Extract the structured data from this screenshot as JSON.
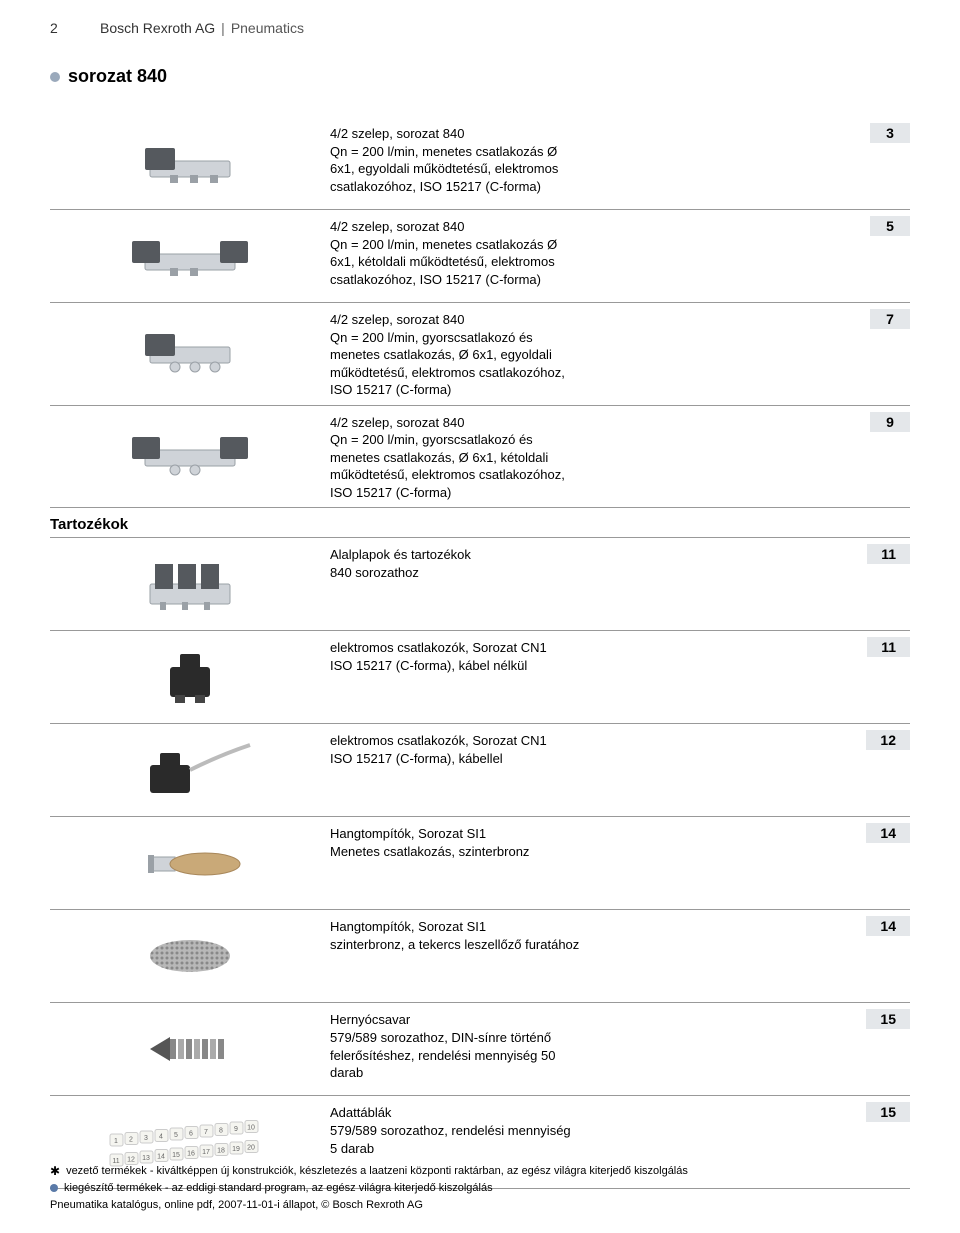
{
  "header": {
    "page_number": "2",
    "company": "Bosch Rexroth AG",
    "category": "Pneumatics"
  },
  "title": "sorozat 840",
  "section_header": "Tartozékok",
  "items": [
    {
      "desc": "4/2 szelep, sorozat 840\nQn = 200 l/min, menetes csatlakozás Ø\n6x1, egyoldali működtetésű, elektromos\ncsatlakozóhoz, ISO 15217 (C-forma)",
      "page": "3",
      "icon": "valve-single"
    },
    {
      "desc": "4/2 szelep, sorozat 840\nQn = 200 l/min, menetes csatlakozás Ø\n6x1, kétoldali működtetésű, elektromos\ncsatlakozóhoz, ISO 15217 (C-forma)",
      "page": "5",
      "icon": "valve-double"
    },
    {
      "desc": "4/2 szelep, sorozat 840\nQn = 200 l/min, gyorscsatlakozó és\nmenetes csatlakozás, Ø 6x1, egyoldali\nműködtetésű, elektromos csatlakozóhoz,\nISO 15217 (C-forma)",
      "page": "7",
      "icon": "valve-quick-single"
    },
    {
      "desc": "4/2 szelep, sorozat 840\nQn = 200 l/min, gyorscsatlakozó és\nmenetes csatlakozás, Ø 6x1, kétoldali\nműködtetésű, elektromos csatlakozóhoz,\nISO 15217 (C-forma)",
      "page": "9",
      "icon": "valve-quick-double"
    }
  ],
  "accessories": [
    {
      "desc": "Alalplapok és tartozékok\n840 sorozathoz",
      "page": "11",
      "icon": "manifold"
    },
    {
      "desc": "elektromos csatlakozók, Sorozat CN1\nISO 15217 (C-forma), kábel nélkül",
      "page": "11",
      "icon": "connector"
    },
    {
      "desc": "elektromos csatlakozók, Sorozat CN1\nISO 15217 (C-forma), kábellel",
      "page": "12",
      "icon": "connector-cable"
    },
    {
      "desc": "Hangtompítók, Sorozat SI1\nMenetes csatlakozás, szinterbronz",
      "page": "14",
      "icon": "silencer"
    },
    {
      "desc": "Hangtompítók, Sorozat SI1\nszinterbronz, a tekercs leszellőző furatához",
      "page": "14",
      "icon": "silencer-coil"
    },
    {
      "desc": "Hernyócsavar\n579/589 sorozathoz, DIN-sínre történő\nfelerősítéshez, rendelési mennyiség 50\ndarab",
      "page": "15",
      "icon": "screw"
    },
    {
      "desc": "Adattáblák\n579/589 sorozathoz, rendelési mennyiség\n5 darab",
      "page": "15",
      "icon": "labels"
    }
  ],
  "footer": {
    "line1": "vezető termékek - kiváltképpen új konstrukciók, készletezés a laatzeni központi raktárban, az egész világra kiterjedő kiszolgálás",
    "line2": "kiegészítő termékek - az eddigi standard program, az egész világra kiterjedő kiszolgálás",
    "line3": "Pneumatika katalógus, online pdf, 2007-11-01-i állapot, © Bosch Rexroth AG"
  }
}
